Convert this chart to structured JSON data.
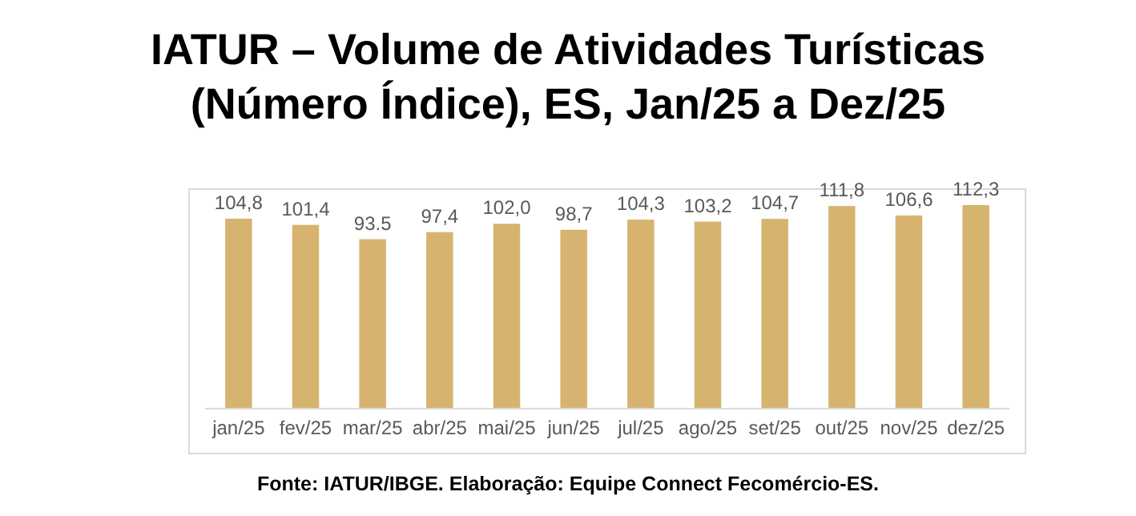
{
  "chart_data": {
    "type": "bar",
    "title": "IATUR – Volume de Atividades Turísticas\n(Número Índice), ES, Jan/25 a Dez/25",
    "categories": [
      "jan/25",
      "fev/25",
      "mar/25",
      "abr/25",
      "mai/25",
      "jun/25",
      "jul/25",
      "ago/25",
      "set/25",
      "out/25",
      "nov/25",
      "dez/25"
    ],
    "values": [
      104.8,
      101.4,
      93.5,
      97.4,
      102.0,
      98.7,
      104.3,
      103.2,
      104.7,
      111.8,
      106.6,
      112.3
    ],
    "value_labels": [
      "104,8",
      "101,4",
      "93.5",
      "97,4",
      "102,0",
      "98,7",
      "104,3",
      "103,2",
      "104,7",
      "111,8",
      "106,6",
      "112,3"
    ],
    "color": "#d6b46f",
    "tick_labels": "x",
    "annotations": [
      "Fonte: IATUR/IBGE. Elaboração: Equipe Connect Fecomércio-ES."
    ]
  }
}
